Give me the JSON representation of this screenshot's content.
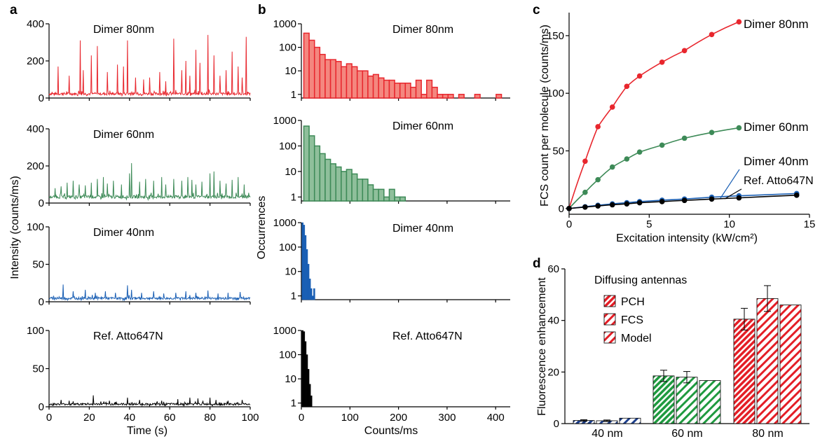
{
  "panel_letters": [
    "a",
    "b",
    "c",
    "d"
  ],
  "colors": {
    "red": "#e8262d",
    "green": "#3d8a57",
    "blue": "#1a5fb4",
    "black": "#000000",
    "red_fill": "#f4877f",
    "green_fill": "#8fbf9b",
    "d_blue": "#1d3f8c",
    "d_green": "#1f9a3f",
    "d_red": "#e41e26"
  },
  "chart_data": [
    {
      "id": "a",
      "type": "line",
      "xlabel": "Time (s)",
      "ylabel": "Intensity (counts/ms)",
      "xlim": [
        0,
        100
      ],
      "xticks": [
        "0",
        "20",
        "40",
        "60",
        "80",
        "100"
      ],
      "subplots": [
        {
          "name": "Dimer 80nm",
          "color": "#e8262d",
          "ylim": [
            0,
            400
          ],
          "yticks": [
            "0",
            "200",
            "400"
          ],
          "baseline": 20,
          "noise": 14,
          "spikes": [
            [
              4.5,
              170
            ],
            [
              10,
              120
            ],
            [
              15.5,
              310
            ],
            [
              17,
              150
            ],
            [
              21,
              230
            ],
            [
              24,
              280
            ],
            [
              29,
              140
            ],
            [
              34,
              180
            ],
            [
              37,
              170
            ],
            [
              39,
              310
            ],
            [
              43,
              110
            ],
            [
              47,
              100
            ],
            [
              50,
              110
            ],
            [
              55,
              140
            ],
            [
              58,
              90
            ],
            [
              62,
              320
            ],
            [
              66,
              150
            ],
            [
              68,
              200
            ],
            [
              70,
              120
            ],
            [
              73,
              260
            ],
            [
              75,
              190
            ],
            [
              79,
              340
            ],
            [
              82,
              230
            ],
            [
              85,
              120
            ],
            [
              88,
              150
            ],
            [
              91,
              250
            ],
            [
              94,
              170
            ],
            [
              96,
              110
            ],
            [
              98,
              330
            ]
          ]
        },
        {
          "name": "Dimer 60nm",
          "color": "#3d8a57",
          "ylim": [
            0,
            400
          ],
          "yticks": [
            "0",
            "200",
            "400"
          ],
          "baseline": 30,
          "noise": 16,
          "spikes": [
            [
              3,
              80
            ],
            [
              6,
              90
            ],
            [
              9,
              110
            ],
            [
              12,
              120
            ],
            [
              15,
              100
            ],
            [
              18,
              95
            ],
            [
              21,
              110
            ],
            [
              24,
              130
            ],
            [
              27,
              140
            ],
            [
              29,
              105
            ],
            [
              32,
              120
            ],
            [
              36,
              100
            ],
            [
              40,
              160
            ],
            [
              41,
              215
            ],
            [
              45,
              115
            ],
            [
              48,
              130
            ],
            [
              52,
              120
            ],
            [
              56,
              140
            ],
            [
              58,
              100
            ],
            [
              62,
              130
            ],
            [
              66,
              120
            ],
            [
              69,
              140
            ],
            [
              71,
              125
            ],
            [
              73,
              100
            ],
            [
              76,
              115
            ],
            [
              80,
              160
            ],
            [
              82,
              170
            ],
            [
              85,
              120
            ],
            [
              88,
              105
            ],
            [
              91,
              125
            ],
            [
              94,
              140
            ],
            [
              97,
              100
            ]
          ]
        },
        {
          "name": "Dimer 40nm",
          "color": "#1a5fb4",
          "ylim": [
            0,
            100
          ],
          "yticks": [
            "0",
            "50",
            "100"
          ],
          "baseline": 4,
          "noise": 3,
          "spikes": [
            [
              7,
              23
            ],
            [
              12,
              14
            ],
            [
              18,
              16
            ],
            [
              23,
              12
            ],
            [
              28,
              14
            ],
            [
              33,
              12
            ],
            [
              39,
              22
            ],
            [
              41,
              16
            ],
            [
              46,
              12
            ],
            [
              52,
              14
            ],
            [
              57,
              11
            ],
            [
              63,
              12
            ],
            [
              68,
              14
            ],
            [
              73,
              12
            ],
            [
              79,
              15
            ],
            [
              84,
              11
            ],
            [
              89,
              12
            ],
            [
              95,
              13
            ]
          ]
        },
        {
          "name": "Ref. Atto647N",
          "color": "#000000",
          "ylim": [
            0,
            100
          ],
          "yticks": [
            "0",
            "50",
            "100"
          ],
          "baseline": 3,
          "noise": 2.5,
          "spikes": [
            [
              6,
              9
            ],
            [
              10,
              8
            ],
            [
              22,
              15
            ],
            [
              30,
              8
            ],
            [
              39,
              12
            ],
            [
              45,
              9
            ],
            [
              56,
              8
            ],
            [
              64,
              10
            ],
            [
              70,
              12
            ],
            [
              74,
              11
            ],
            [
              80,
              12
            ],
            [
              83,
              9
            ],
            [
              89,
              8
            ],
            [
              96,
              9
            ]
          ]
        }
      ]
    },
    {
      "id": "b",
      "type": "bar",
      "xlabel": "Counts/ms",
      "ylabel": "Occurrences",
      "xlim": [
        0,
        430
      ],
      "xticks": [
        0,
        100,
        200,
        300,
        400
      ],
      "yscale": "log",
      "ylim": [
        0.7,
        1000
      ],
      "yticks": [
        "1",
        "10",
        "100",
        "1000"
      ],
      "subplots": [
        {
          "name": "Dimer 80nm",
          "color": "#e8262d",
          "fill": "#f4877f",
          "bin_width": 11,
          "bins": [
            [
              5,
              400
            ],
            [
              16,
              200
            ],
            [
              27,
              100
            ],
            [
              38,
              50
            ],
            [
              49,
              30
            ],
            [
              60,
              30
            ],
            [
              71,
              25
            ],
            [
              82,
              15
            ],
            [
              93,
              20
            ],
            [
              104,
              15
            ],
            [
              115,
              10
            ],
            [
              126,
              10
            ],
            [
              137,
              6
            ],
            [
              148,
              7
            ],
            [
              159,
              5
            ],
            [
              170,
              4
            ],
            [
              181,
              4
            ],
            [
              192,
              3
            ],
            [
              203,
              3
            ],
            [
              214,
              3
            ],
            [
              225,
              2
            ],
            [
              236,
              4
            ],
            [
              247,
              1
            ],
            [
              258,
              4
            ],
            [
              269,
              2
            ],
            [
              280,
              1
            ],
            [
              291,
              1
            ],
            [
              302,
              1
            ],
            [
              324,
              1
            ],
            [
              357,
              1
            ],
            [
              401,
              1
            ]
          ]
        },
        {
          "name": "Dimer 60nm",
          "color": "#3d8a57",
          "fill": "#8fbf9b",
          "bin_width": 11,
          "bins": [
            [
              5,
              600
            ],
            [
              16,
              250
            ],
            [
              27,
              100
            ],
            [
              38,
              50
            ],
            [
              49,
              30
            ],
            [
              60,
              20
            ],
            [
              71,
              15
            ],
            [
              82,
              10
            ],
            [
              93,
              12
            ],
            [
              104,
              8
            ],
            [
              115,
              5
            ],
            [
              126,
              5
            ],
            [
              137,
              3
            ],
            [
              148,
              2
            ],
            [
              159,
              2
            ],
            [
              170,
              1
            ],
            [
              181,
              2
            ],
            [
              192,
              1
            ],
            [
              203,
              1
            ]
          ]
        },
        {
          "name": "Dimer 40nm",
          "color": "#1a5fb4",
          "fill": "#1a5fb4",
          "bin_width": 3,
          "bins": [
            [
              1,
              1000
            ],
            [
              4,
              800
            ],
            [
              7,
              300
            ],
            [
              10,
              80
            ],
            [
              13,
              20
            ],
            [
              16,
              5
            ],
            [
              19,
              2
            ],
            [
              22,
              1
            ],
            [
              25,
              2
            ]
          ]
        },
        {
          "name": "Ref. Atto647N",
          "color": "#000000",
          "fill": "#000000",
          "bin_width": 3,
          "bins": [
            [
              1,
              1000
            ],
            [
              4,
              900
            ],
            [
              7,
              350
            ],
            [
              10,
              100
            ],
            [
              13,
              25
            ],
            [
              16,
              6
            ],
            [
              19,
              2
            ]
          ]
        }
      ]
    },
    {
      "id": "c",
      "type": "scatter",
      "xlabel": "Excitation intensity (kW/cm²)",
      "ylabel": "FCS count per molecule (counts/ms)",
      "xlim": [
        0,
        15
      ],
      "ylim": [
        -5,
        170
      ],
      "xticks": [
        0,
        5,
        10,
        15
      ],
      "yticks": [
        0,
        50,
        100,
        150
      ],
      "series": [
        {
          "name": "Dimer 80nm",
          "color": "#e8262d",
          "points": [
            [
              0,
              0
            ],
            [
              1,
              41
            ],
            [
              1.8,
              71
            ],
            [
              2.7,
              88
            ],
            [
              3.6,
              106
            ],
            [
              4.4,
              115
            ],
            [
              5.8,
              127
            ],
            [
              7.2,
              137
            ],
            [
              8.9,
              151
            ],
            [
              10.6,
              162
            ]
          ],
          "fit": [
            0,
            10.6
          ]
        },
        {
          "name": "Dimer 60nm",
          "color": "#3d8a57",
          "points": [
            [
              0,
              0
            ],
            [
              1,
              14
            ],
            [
              1.8,
              25
            ],
            [
              2.7,
              36
            ],
            [
              3.6,
              43
            ],
            [
              4.4,
              49
            ],
            [
              5.8,
              55
            ],
            [
              7.2,
              61
            ],
            [
              8.9,
              66
            ],
            [
              10.6,
              70
            ]
          ],
          "fit": [
            0,
            10.6
          ]
        },
        {
          "name": "Dimer 40nm",
          "color": "#1a5fb4",
          "points": [
            [
              0,
              0
            ],
            [
              1,
              1.5
            ],
            [
              1.8,
              2.8
            ],
            [
              2.7,
              4
            ],
            [
              3.6,
              5
            ],
            [
              4.4,
              6
            ],
            [
              5.8,
              7.2
            ],
            [
              7.2,
              8.2
            ],
            [
              8.9,
              9.8
            ],
            [
              10.6,
              11
            ],
            [
              14.2,
              13
            ]
          ],
          "fit": [
            0,
            14.2
          ]
        },
        {
          "name": "Ref. Atto647N",
          "color": "#000000",
          "points": [
            [
              0,
              0
            ],
            [
              1,
              1.2
            ],
            [
              1.8,
              2.2
            ],
            [
              2.7,
              3.2
            ],
            [
              3.6,
              4
            ],
            [
              4.4,
              5
            ],
            [
              5.8,
              6
            ],
            [
              7.2,
              7
            ],
            [
              8.9,
              8.2
            ],
            [
              10.6,
              9.2
            ],
            [
              14.2,
              11.5
            ]
          ],
          "fit": [
            0,
            14.2
          ]
        }
      ]
    },
    {
      "id": "d",
      "type": "bar",
      "ylabel": "Fluorescence enhancement",
      "legend_title": "Diffusing antennas",
      "categories": [
        "40 nm",
        "60 nm",
        "80 nm"
      ],
      "ylim": [
        0,
        60
      ],
      "yticks": [
        0,
        20,
        40,
        60
      ],
      "series": [
        {
          "name": "PCH",
          "values": [
            1.2,
            18.5,
            40.5
          ],
          "errors": [
            0.3,
            2.2,
            4.2
          ]
        },
        {
          "name": "FCS",
          "values": [
            1.1,
            18.0,
            48.5
          ],
          "errors": [
            0.3,
            2.2,
            5.0
          ]
        },
        {
          "name": "Model",
          "values": [
            2.1,
            16.7,
            46.0
          ],
          "errors": [
            0,
            0,
            0
          ]
        }
      ]
    }
  ]
}
